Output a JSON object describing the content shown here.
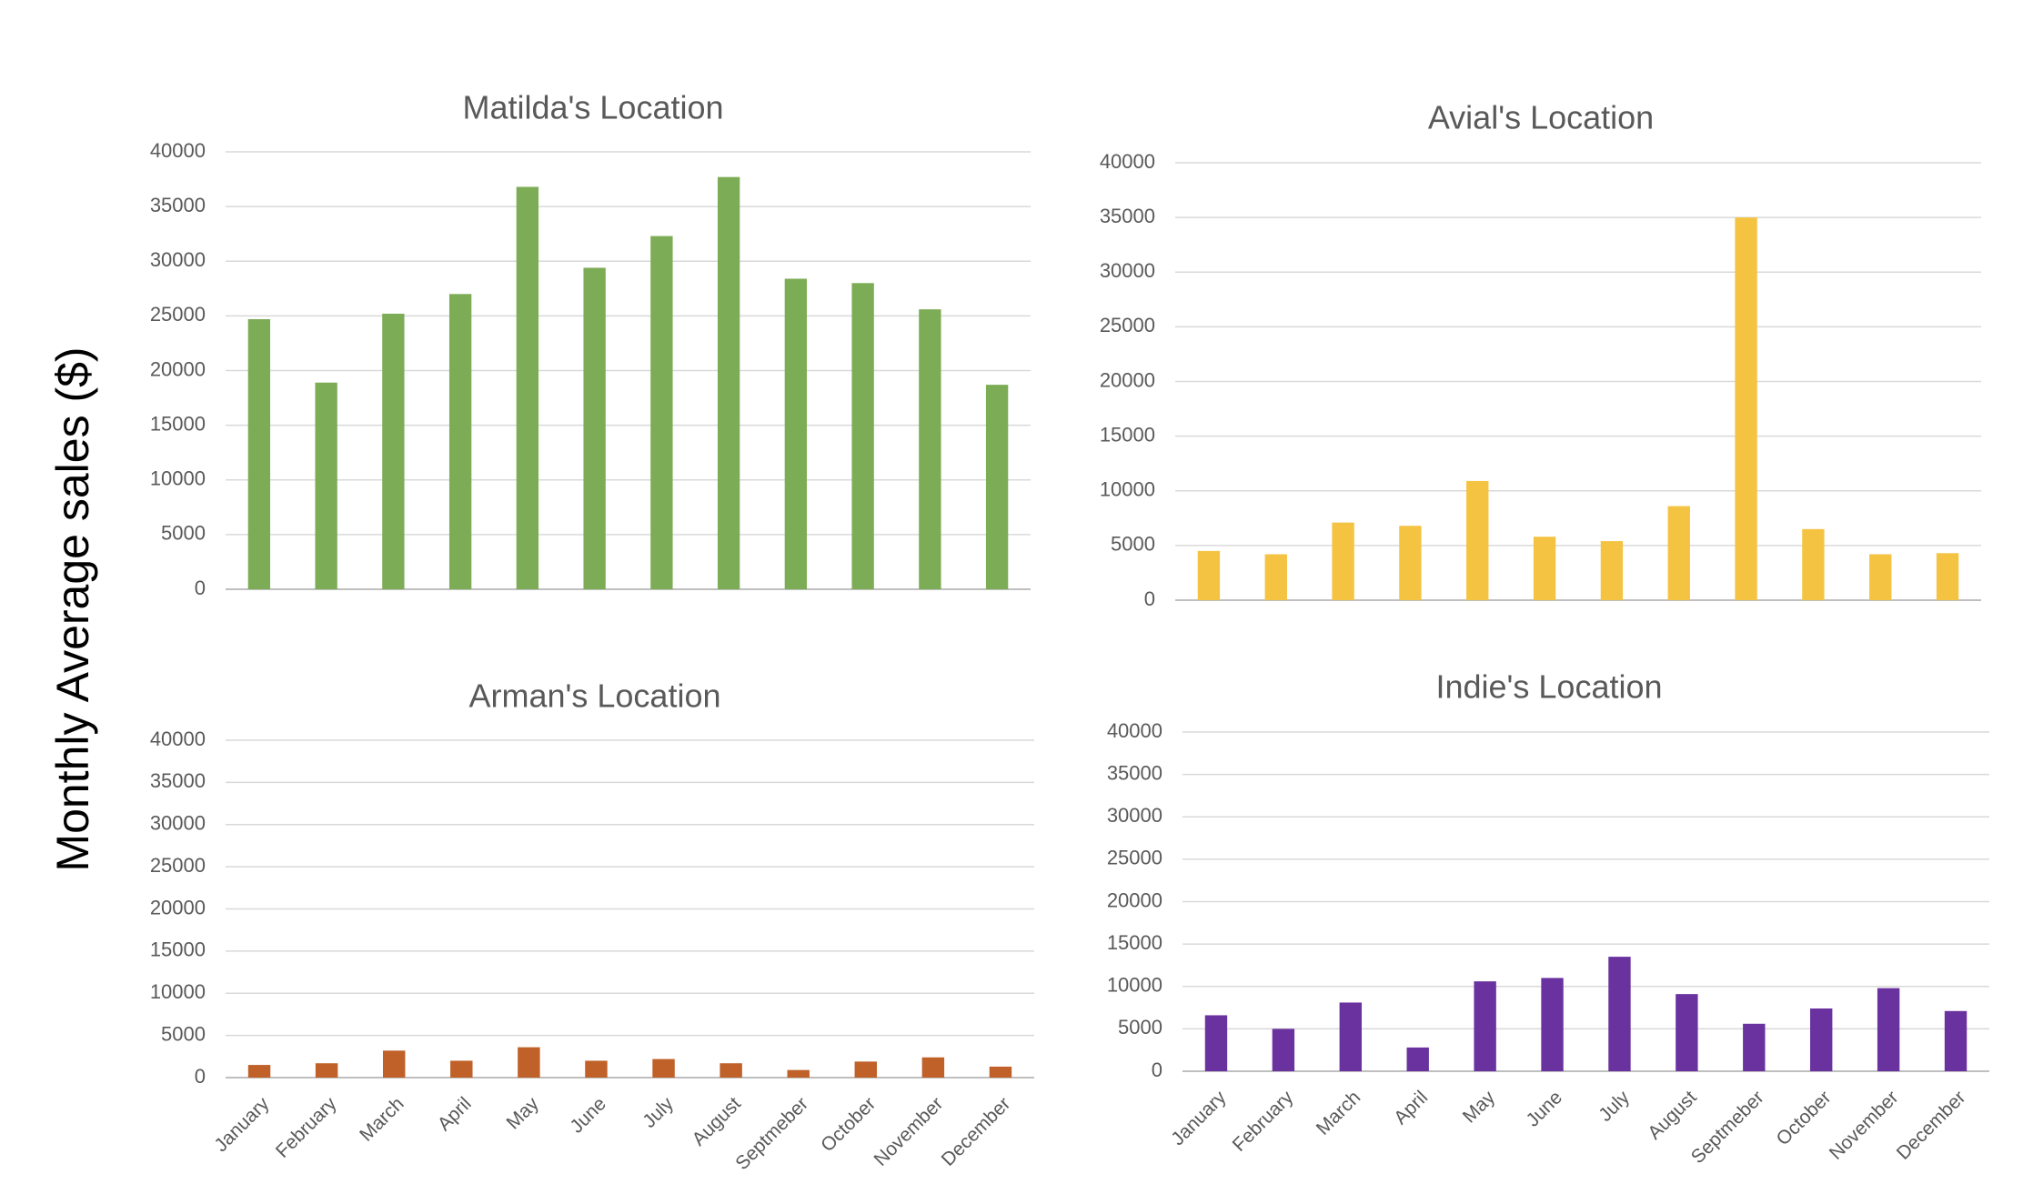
{
  "ylabel": "Monthly Average sales ($)",
  "chart_data": [
    {
      "type": "bar",
      "title": "Matilda's Location",
      "color": "#7DAC56",
      "categories": [
        "January",
        "February",
        "March",
        "April",
        "May",
        "June",
        "July",
        "August",
        "Septmeber",
        "October",
        "November",
        "December"
      ],
      "values": [
        24700,
        18900,
        25200,
        27000,
        36800,
        29400,
        32300,
        37700,
        28400,
        28000,
        25600,
        18700
      ],
      "ylim": [
        0,
        40000
      ],
      "yticks": [
        0,
        5000,
        10000,
        15000,
        20000,
        25000,
        30000,
        35000,
        40000
      ],
      "show_xlabels": false,
      "grid": true
    },
    {
      "type": "bar",
      "title": "Avial's Location",
      "color": "#F5C342",
      "categories": [
        "January",
        "February",
        "March",
        "April",
        "May",
        "June",
        "July",
        "August",
        "Septmeber",
        "October",
        "November",
        "December"
      ],
      "values": [
        4500,
        4200,
        7100,
        6800,
        10900,
        5800,
        5400,
        8600,
        35000,
        6500,
        4200,
        4300
      ],
      "ylim": [
        0,
        40000
      ],
      "yticks": [
        0,
        5000,
        10000,
        15000,
        20000,
        25000,
        30000,
        35000,
        40000
      ],
      "show_xlabels": false,
      "grid": true
    },
    {
      "type": "bar",
      "title": "Arman's Location",
      "color": "#BF6129",
      "categories": [
        "January",
        "February",
        "March",
        "April",
        "May",
        "June",
        "July",
        "August",
        "Septmeber",
        "October",
        "November",
        "December"
      ],
      "values": [
        1500,
        1700,
        3200,
        2000,
        3600,
        2000,
        2200,
        1700,
        900,
        1900,
        2400,
        1300
      ],
      "ylim": [
        0,
        40000
      ],
      "yticks": [
        0,
        5000,
        10000,
        15000,
        20000,
        25000,
        30000,
        35000,
        40000
      ],
      "show_xlabels": true,
      "grid": true
    },
    {
      "type": "bar",
      "title": "Indie's Location",
      "color": "#6A329F",
      "categories": [
        "January",
        "February",
        "March",
        "April",
        "May",
        "June",
        "July",
        "August",
        "Septmeber",
        "October",
        "November",
        "December"
      ],
      "values": [
        6600,
        5000,
        8100,
        2800,
        10600,
        11000,
        13500,
        9100,
        5600,
        7400,
        9800,
        7100
      ],
      "ylim": [
        0,
        40000
      ],
      "yticks": [
        0,
        5000,
        10000,
        15000,
        20000,
        25000,
        30000,
        35000,
        40000
      ],
      "show_xlabels": true,
      "grid": true
    }
  ]
}
